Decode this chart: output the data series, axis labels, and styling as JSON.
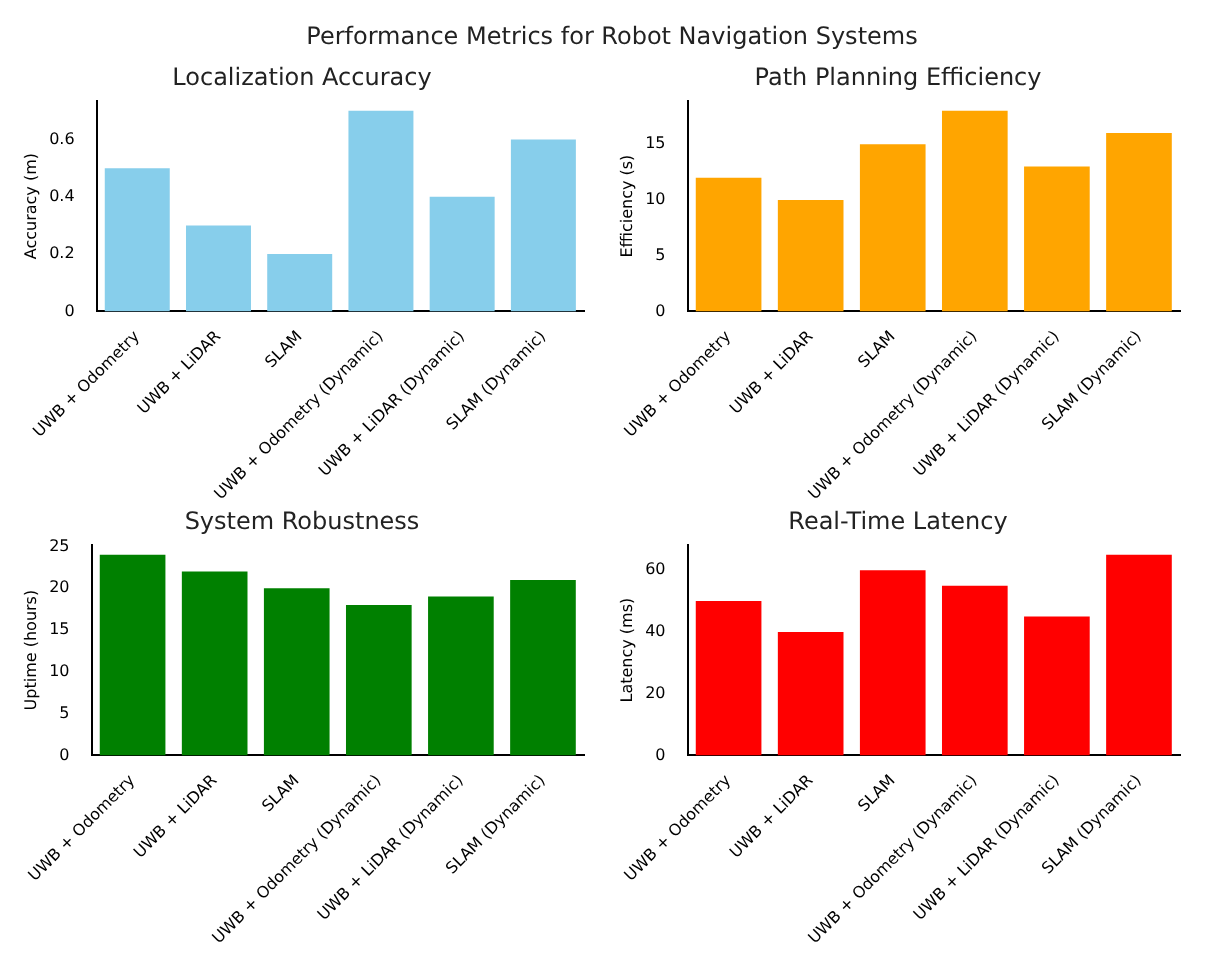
{
  "chart_data": [
    {
      "type": "bar",
      "annotations": [
        "Performance Metrics for Robot Navigation Systems"
      ],
      "title": "Localization Accuracy",
      "ylabel": "Accuracy (m)",
      "categories": [
        "UWB + Odometry",
        "UWB + LiDAR",
        "SLAM",
        "UWB + Odometry (Dynamic)",
        "UWB + LiDAR (Dynamic)",
        "SLAM (Dynamic)"
      ],
      "values": [
        0.5,
        0.3,
        0.2,
        0.7,
        0.4,
        0.6
      ],
      "color": "#87ceeb",
      "ylim": [
        0,
        0.735
      ],
      "yticks": [
        0,
        0.2,
        0.4,
        0.6
      ],
      "grid": false
    },
    {
      "type": "bar",
      "title": "Path Planning Efficiency",
      "ylabel": "Efficiency (s)",
      "categories": [
        "UWB + Odometry",
        "UWB + LiDAR",
        "SLAM",
        "UWB + Odometry (Dynamic)",
        "UWB + LiDAR (Dynamic)",
        "SLAM (Dynamic)"
      ],
      "values": [
        12,
        10,
        15,
        18,
        13,
        16
      ],
      "color": "#ffa500",
      "ylim": [
        0,
        18.9
      ],
      "yticks": [
        0,
        5,
        10,
        15
      ],
      "grid": false
    },
    {
      "type": "bar",
      "title": "System Robustness",
      "ylabel": "Uptime (hours)",
      "categories": [
        "UWB + Odometry",
        "UWB + LiDAR",
        "SLAM",
        "UWB + Odometry (Dynamic)",
        "UWB + LiDAR (Dynamic)",
        "SLAM (Dynamic)"
      ],
      "values": [
        24,
        22,
        20,
        18,
        19,
        21
      ],
      "color": "#008000",
      "ylim": [
        0,
        25.2
      ],
      "yticks": [
        0,
        5,
        10,
        15,
        20,
        25
      ],
      "grid": false
    },
    {
      "type": "bar",
      "title": "Real-Time Latency",
      "ylabel": "Latency (ms)",
      "categories": [
        "UWB + Odometry",
        "UWB + LiDAR",
        "SLAM",
        "UWB + Odometry (Dynamic)",
        "UWB + LiDAR (Dynamic)",
        "SLAM (Dynamic)"
      ],
      "values": [
        50,
        40,
        60,
        55,
        45,
        65
      ],
      "color": "#ff0000",
      "ylim": [
        0,
        68.25
      ],
      "yticks": [
        0,
        20,
        40,
        60
      ],
      "grid": false
    }
  ]
}
